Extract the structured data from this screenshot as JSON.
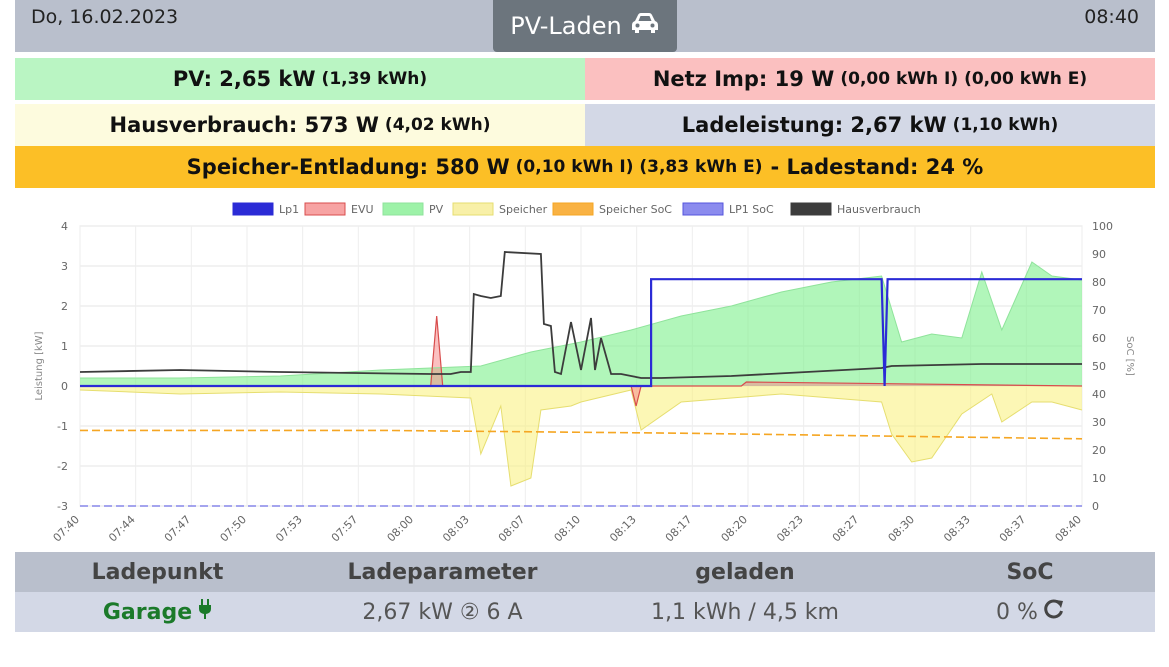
{
  "header": {
    "date": "Do, 16.02.2023",
    "time": "08:40",
    "mode_label": "PV-Laden",
    "mode_icon": "car-icon"
  },
  "stats": {
    "pv_label": "PV: 2,65 kW",
    "pv_energy": "(1,39 kWh)",
    "netz_label": "Netz Imp: 19 W",
    "netz_detail": "(0,00 kWh I) (0,00 kWh E)",
    "haus_label": "Hausverbrauch: 573 W",
    "haus_energy": "(4,02 kWh)",
    "lade_label": "Ladeleistung: 2,67 kW",
    "lade_energy": "(1,10 kWh)",
    "speicher_label": "Speicher-Entladung: 580 W",
    "speicher_detail": "(0,10 kWh I) (3,83 kWh E)",
    "speicher_suffix": "- Ladestand: 24 %"
  },
  "colors": {
    "pv": "#baf5c3",
    "netz": "#fbc0c0",
    "haus": "#fdfbde",
    "lade": "#d3d8e6",
    "speicher": "#fcbf26",
    "garage": "#1b7a2a"
  },
  "chart_data": {
    "type": "line",
    "legend": [
      "Lp1",
      "EVU",
      "PV",
      "Speicher",
      "Speicher SoC",
      "LP1 SoC",
      "Hausverbrauch"
    ],
    "legend_position": "top",
    "ylabel": "Leistung [kW]",
    "y2label": "SoC [%]",
    "ylim": [
      -3,
      4
    ],
    "y2lim": [
      0,
      100
    ],
    "y_ticks": [
      "4",
      "3",
      "2",
      "1",
      "0",
      "-1",
      "-2",
      "-3"
    ],
    "y2_ticks": [
      "100",
      "90",
      "80",
      "70",
      "60",
      "50",
      "40",
      "30",
      "20",
      "10",
      "0"
    ],
    "x_ticks": [
      "07:40",
      "07:44",
      "07:47",
      "07:50",
      "07:53",
      "07:57",
      "08:00",
      "08:03",
      "08:07",
      "08:10",
      "08:13",
      "08:17",
      "08:20",
      "08:23",
      "08:27",
      "08:30",
      "08:33",
      "08:37",
      "08:40"
    ],
    "series": [
      {
        "name": "Lp1",
        "axis": "kW",
        "x": [
          0,
          57,
          57,
          80,
          80.3,
          80.6,
          100
        ],
        "y": [
          0,
          0,
          2.67,
          2.67,
          0,
          2.67,
          2.67
        ]
      },
      {
        "name": "EVU",
        "axis": "kW",
        "x": [
          0,
          35,
          35.6,
          36.2,
          37,
          55,
          55.5,
          56,
          57,
          66,
          66.5,
          100
        ],
        "y": [
          0,
          0,
          1.75,
          0,
          0,
          0,
          -0.5,
          0,
          0,
          0,
          0.1,
          0
        ]
      },
      {
        "name": "PV",
        "axis": "kW",
        "x": [
          0,
          10,
          20,
          30,
          40,
          45,
          50,
          55,
          60,
          65,
          70,
          75,
          80,
          82,
          85,
          88,
          90,
          92,
          95,
          97,
          100
        ],
        "y": [
          0.2,
          0.2,
          0.25,
          0.4,
          0.5,
          0.85,
          1.1,
          1.4,
          1.75,
          2.0,
          2.35,
          2.6,
          2.75,
          1.1,
          1.3,
          1.2,
          2.85,
          1.4,
          3.1,
          2.75,
          2.65
        ]
      },
      {
        "name": "Speicher",
        "axis": "kW",
        "x": [
          0,
          10,
          20,
          30,
          39,
          40,
          42,
          43,
          45,
          46,
          49,
          50,
          55,
          56,
          60,
          70,
          80,
          81,
          83,
          85,
          88,
          91,
          92,
          95,
          97,
          100
        ],
        "y": [
          -0.1,
          -0.2,
          -0.15,
          -0.2,
          -0.3,
          -1.7,
          -0.5,
          -2.5,
          -2.3,
          -0.6,
          -0.5,
          -0.4,
          -0.1,
          -1.1,
          -0.4,
          -0.2,
          -0.4,
          -1.2,
          -1.9,
          -1.8,
          -0.7,
          -0.2,
          -0.9,
          -0.4,
          -0.4,
          -0.6
        ]
      },
      {
        "name": "Speicher SoC",
        "axis": "SoC",
        "x": [
          0,
          30,
          60,
          80,
          100
        ],
        "y": [
          27,
          27,
          26,
          25,
          24
        ]
      },
      {
        "name": "LP1 SoC",
        "axis": "SoC",
        "x": [
          0,
          100
        ],
        "y": [
          0,
          0
        ]
      },
      {
        "name": "Hausverbrauch",
        "axis": "kW",
        "x": [
          0,
          10,
          20,
          35,
          37,
          38,
          39,
          39.3,
          40,
          41,
          42,
          42.4,
          46,
          46.3,
          47,
          47.4,
          48,
          49,
          50,
          51,
          51.4,
          52,
          53,
          54,
          55,
          56,
          58,
          65,
          80,
          81,
          90,
          100
        ],
        "y": [
          0.35,
          0.4,
          0.35,
          0.3,
          0.3,
          0.35,
          0.35,
          2.3,
          2.25,
          2.2,
          2.25,
          3.35,
          3.3,
          1.55,
          1.5,
          0.35,
          0.3,
          1.6,
          0.4,
          1.7,
          0.4,
          1.2,
          0.3,
          0.3,
          0.25,
          0.2,
          0.2,
          0.25,
          0.45,
          0.5,
          0.55,
          0.55
        ]
      }
    ]
  },
  "ladepunkt": {
    "headers": [
      "Ladepunkt",
      "Ladeparameter",
      "geladen",
      "SoC"
    ],
    "name": "Garage",
    "name_icon": "plug-icon",
    "parameter": "2,67 kW ② 6 A",
    "geladen": "1,1 kWh / 4,5 km",
    "soc": "0 %",
    "soc_icon": "refresh-icon"
  }
}
